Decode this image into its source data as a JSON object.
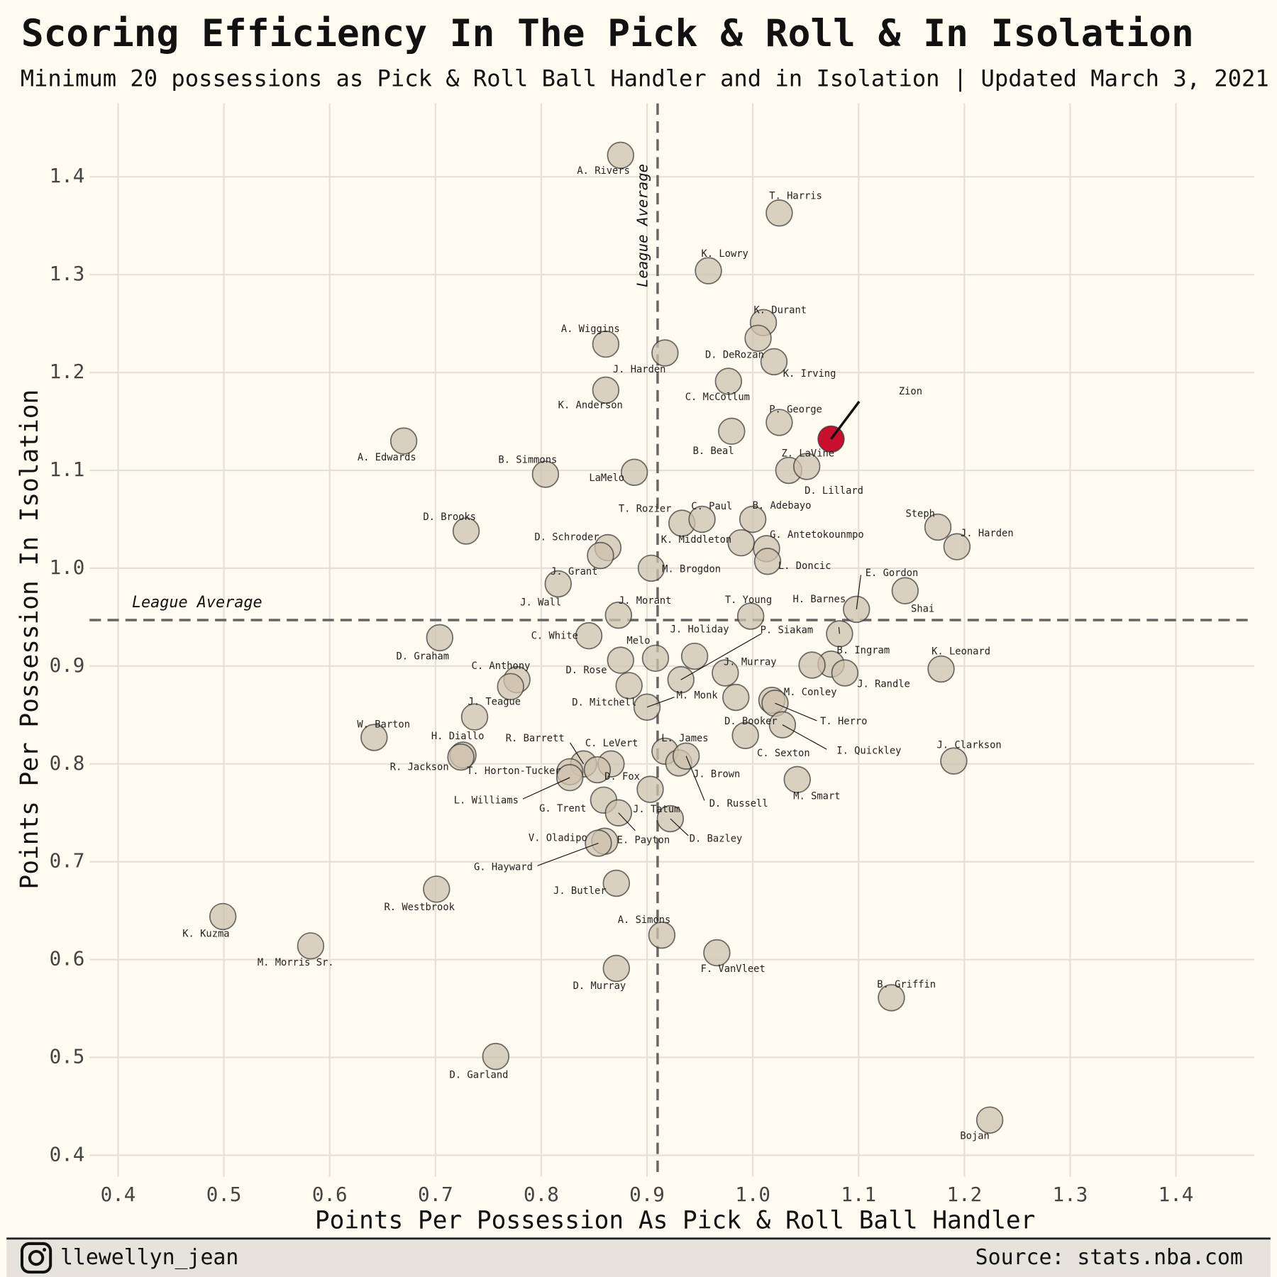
{
  "chart_data": {
    "type": "scatter",
    "title": "Scoring Efficiency In The Pick & Roll & In Isolation",
    "subtitle": "Minimum 20 possessions as Pick & Roll Ball Handler and in Isolation | Updated March 3, 2021",
    "x_label": "Points Per Possession As Pick & Roll Ball Handler",
    "y_label": "Points Per Possession In Isolation",
    "credit": "llewellyn_jean",
    "source": "Source: stats.nba.com",
    "xlim": [
      0.373,
      1.474
    ],
    "ylim": [
      0.378,
      1.475
    ],
    "xticks": [
      0.4,
      0.5,
      0.6,
      0.7,
      0.8,
      0.9,
      {
        "value": 1,
        "label": "1.0"
      },
      1.1,
      1.2,
      1.3,
      1.4
    ],
    "yticks": [
      0.4,
      0.5,
      0.6,
      0.7,
      0.8,
      0.9,
      {
        "value": 1,
        "label": "1.0"
      },
      1.1,
      1.2,
      1.3,
      1.4
    ],
    "grid": true,
    "reference_lines": [
      {
        "axis": "x",
        "value": 0.91,
        "label": "League Average"
      },
      {
        "axis": "y",
        "value": 0.947,
        "label": "League Average"
      }
    ],
    "labels": [
      "A. Rivers",
      "T. Harris",
      "K. Lowry",
      "K. Durant",
      "D. DeRozan",
      "K. Irving",
      "A. Wiggins",
      "J. Harden",
      "K. Anderson",
      "C. McCollum",
      "P. George",
      "Zion",
      "B. Beal",
      "A. Edwards",
      "B. Simmons",
      "LaMelo",
      "Z. LaVine",
      "D. Lillard",
      "T. Rozier",
      "C. Paul",
      "B. Adebayo",
      "Steph",
      "J. Harden",
      "D. Brooks",
      "D. Schroder",
      "K. Middleton",
      "G. Antetokounmpo",
      "L. Doncic",
      "M. Brogdon",
      "J. Grant",
      "J. Wall",
      "J. Morant",
      "C. White",
      "T. Young",
      "E. Gordon",
      "Shai",
      "H. Barnes",
      "B. Ingram",
      "J. Randle",
      "K. Leonard",
      "J. Holiday",
      "P. Siakam",
      "D. Graham",
      "Melo",
      "D. Rose",
      "C. Anthony",
      "D. Mitchell",
      "M. Monk",
      "J. Murray",
      "D. Booker",
      "M. Conley",
      "T. Herro",
      "I. Quickley",
      "C. Sexton",
      "J. Teague",
      "W. Barton",
      "H. Diallo",
      "R. Jackson",
      "J. Clarkson",
      "R. Barrett",
      "C. LeVert",
      "T. Horton-Tucker",
      "D. Fox",
      "L. James",
      "J. Brown",
      "D. Russell",
      "L. Williams",
      "G. Trent",
      "J. Tatum",
      "E. Payton",
      "D. Bazley",
      "V. Oladipo",
      "G. Hayward",
      "M. Smart",
      "J. Butler",
      "R. Westbrook",
      "K. Kuzma",
      "M. Morris Sr.",
      "A. Simons",
      "F. VanVleet",
      "D. Murray",
      "B. Griffin",
      "D. Garland",
      "Bojan",
      null,
      null
    ],
    "x": [
      0.875,
      1.025,
      0.958,
      1.01,
      1.005,
      1.02,
      0.861,
      0.917,
      0.861,
      0.977,
      1.025,
      1.074,
      0.98,
      0.67,
      0.804,
      0.888,
      1.034,
      1.051,
      0.933,
      0.952,
      1.0,
      1.175,
      1.193,
      0.729,
      0.863,
      0.989,
      1.013,
      1.014,
      0.904,
      0.856,
      0.816,
      0.873,
      0.845,
      0.998,
      1.098,
      1.144,
      1.082,
      1.074,
      1.087,
      1.178,
      0.945,
      0.932,
      0.704,
      0.908,
      0.875,
      0.777,
      0.883,
      0.9,
      0.974,
      0.984,
      1.018,
      1.021,
      1.028,
      0.993,
      0.737,
      0.642,
      0.726,
      0.724,
      1.19,
      0.84,
      0.866,
      0.827,
      0.853,
      0.917,
      0.93,
      0.937,
      0.827,
      0.859,
      0.903,
      0.873,
      0.922,
      0.86,
      0.854,
      1.042,
      0.871,
      0.701,
      0.499,
      0.582,
      0.914,
      0.966,
      0.871,
      1.131,
      0.757,
      1.224,
      1.056,
      0.771
    ],
    "y": [
      1.422,
      1.363,
      1.304,
      1.251,
      1.235,
      1.211,
      1.229,
      1.22,
      1.182,
      1.191,
      1.149,
      1.132,
      1.14,
      1.13,
      1.096,
      1.098,
      1.1,
      1.104,
      1.046,
      1.05,
      1.05,
      1.042,
      1.022,
      1.038,
      1.021,
      1.026,
      1.02,
      1.007,
      1.0,
      1.013,
      0.984,
      0.952,
      0.931,
      0.951,
      0.958,
      0.977,
      0.933,
      0.902,
      0.893,
      0.897,
      0.91,
      0.886,
      0.929,
      0.908,
      0.906,
      0.886,
      0.88,
      0.858,
      0.893,
      0.868,
      0.865,
      0.862,
      0.84,
      0.829,
      0.848,
      0.827,
      0.809,
      0.807,
      0.803,
      0.8,
      0.8,
      0.792,
      0.794,
      0.813,
      0.801,
      0.808,
      0.786,
      0.763,
      0.774,
      0.75,
      0.744,
      0.721,
      0.719,
      0.784,
      0.678,
      0.672,
      0.644,
      0.614,
      0.625,
      0.607,
      0.591,
      0.561,
      0.501,
      0.436,
      0.901,
      0.879
    ],
    "colors": [
      "#cdc2ae",
      "#cdc2ae",
      "#cdc2ae",
      "#cdc2ae",
      "#cdc2ae",
      "#cdc2ae",
      "#cdc2ae",
      "#cdc2ae",
      "#cdc2ae",
      "#cdc2ae",
      "#cdc2ae",
      "#c8102e",
      "#cdc2ae",
      "#cdc2ae",
      "#cdc2ae",
      "#cdc2ae",
      "#cdc2ae",
      "#cdc2ae",
      "#cdc2ae",
      "#cdc2ae",
      "#cdc2ae",
      "#cdc2ae",
      "#cdc2ae",
      "#cdc2ae",
      "#cdc2ae",
      "#cdc2ae",
      "#cdc2ae",
      "#cdc2ae",
      "#cdc2ae",
      "#cdc2ae",
      "#cdc2ae",
      "#cdc2ae",
      "#cdc2ae",
      "#cdc2ae",
      "#cdc2ae",
      "#cdc2ae",
      "#cdc2ae",
      "#cdc2ae",
      "#cdc2ae",
      "#cdc2ae",
      "#cdc2ae",
      "#cdc2ae",
      "#cdc2ae",
      "#cdc2ae",
      "#cdc2ae",
      "#cdc2ae",
      "#cdc2ae",
      "#cdc2ae",
      "#cdc2ae",
      "#cdc2ae",
      "#cdc2ae",
      "#cdc2ae",
      "#cdc2ae",
      "#cdc2ae",
      "#cdc2ae",
      "#cdc2ae",
      "#cdc2ae",
      "#cdc2ae",
      "#cdc2ae",
      "#cdc2ae",
      "#cdc2ae",
      "#cdc2ae",
      "#cdc2ae",
      "#cdc2ae",
      "#cdc2ae",
      "#cdc2ae",
      "#cdc2ae",
      "#cdc2ae",
      "#cdc2ae",
      "#cdc2ae",
      "#cdc2ae",
      "#cdc2ae",
      "#cdc2ae",
      "#cdc2ae",
      "#cdc2ae",
      "#cdc2ae",
      "#cdc2ae",
      "#cdc2ae",
      "#cdc2ae",
      "#cdc2ae",
      "#cdc2ae",
      "#cdc2ae",
      "#cdc2ae",
      "#cdc2ae",
      "#cdc2ae",
      "#cdc2ae"
    ]
  }
}
